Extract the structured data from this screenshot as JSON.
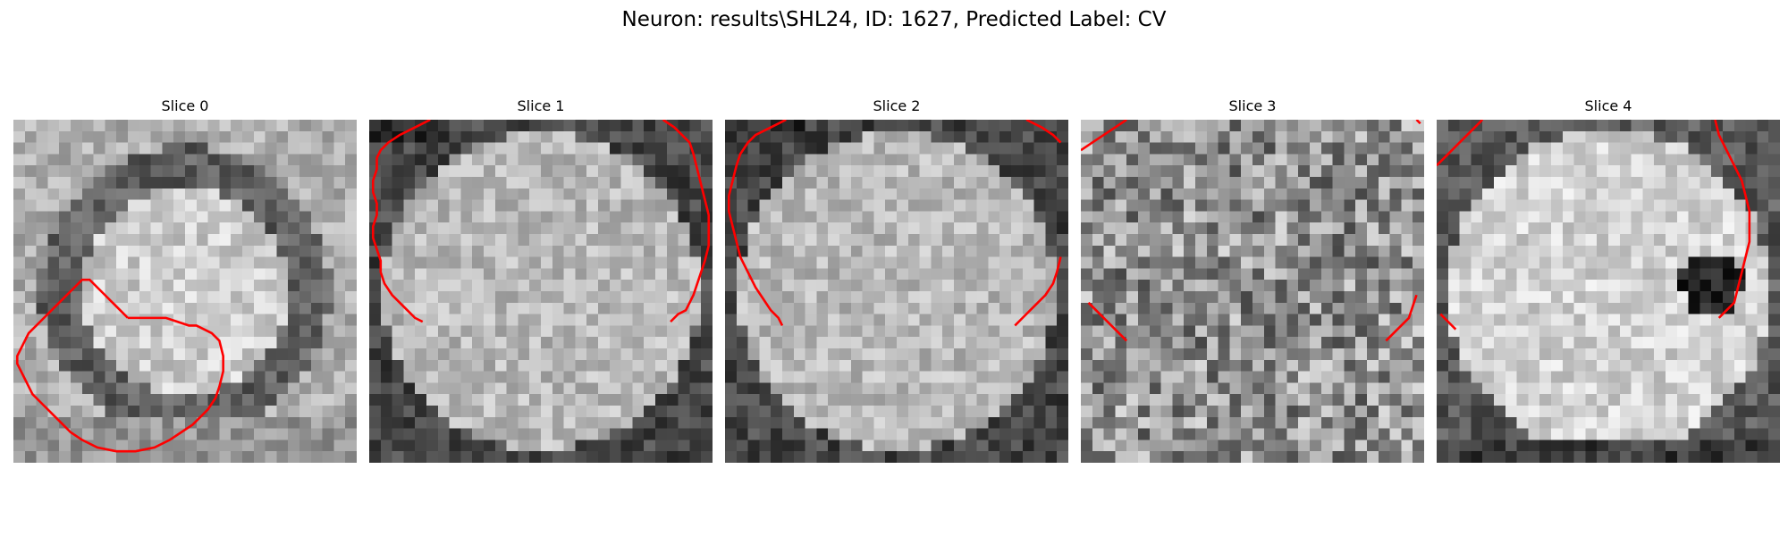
{
  "figure": {
    "title": "Neuron: results\\SHL24, ID: 1627, Predicted Label: CV"
  },
  "panels": [
    {
      "title": "Slice 0",
      "pattern": "ring",
      "contour_color": "#ff0000",
      "contours": [
        [
          [
            30,
            52
          ],
          [
            28,
            50
          ],
          [
            26,
            48
          ],
          [
            24,
            46
          ],
          [
            22,
            44
          ],
          [
            20,
            42
          ],
          [
            18,
            42
          ],
          [
            16,
            44
          ],
          [
            14,
            46
          ],
          [
            12,
            48
          ],
          [
            10,
            50
          ],
          [
            8,
            52
          ],
          [
            6,
            54
          ],
          [
            4,
            56
          ],
          [
            3,
            58
          ],
          [
            2,
            60
          ],
          [
            1,
            62
          ],
          [
            1,
            64
          ],
          [
            2,
            66
          ],
          [
            3,
            68
          ],
          [
            4,
            70
          ],
          [
            5,
            72
          ],
          [
            7,
            74
          ],
          [
            9,
            76
          ],
          [
            11,
            78
          ],
          [
            13,
            80
          ],
          [
            15,
            82
          ],
          [
            18,
            84
          ],
          [
            22,
            86
          ],
          [
            27,
            87
          ],
          [
            32,
            87
          ],
          [
            37,
            86
          ],
          [
            41,
            84
          ],
          [
            44,
            82
          ],
          [
            47,
            80
          ],
          [
            49,
            78
          ],
          [
            51,
            76
          ],
          [
            53,
            73
          ],
          [
            54,
            70
          ],
          [
            55,
            66
          ],
          [
            55,
            62
          ],
          [
            54,
            58
          ],
          [
            52,
            56
          ],
          [
            50,
            55
          ],
          [
            48,
            54
          ],
          [
            46,
            54
          ],
          [
            43,
            53
          ],
          [
            40,
            52
          ],
          [
            36,
            52
          ],
          [
            30,
            52
          ]
        ]
      ]
    },
    {
      "title": "Slice 1",
      "pattern": "disk",
      "contour_color": "#ff0000",
      "contours": [
        [
          [
            16,
            0
          ],
          [
            12,
            2
          ],
          [
            8,
            4
          ],
          [
            5,
            6
          ],
          [
            3,
            8
          ],
          [
            2,
            10
          ],
          [
            2,
            13
          ],
          [
            1,
            16
          ],
          [
            1,
            19
          ],
          [
            2,
            22
          ],
          [
            2,
            25
          ],
          [
            1,
            28
          ],
          [
            1,
            31
          ],
          [
            2,
            34
          ],
          [
            3,
            37
          ],
          [
            3,
            40
          ],
          [
            4,
            43
          ],
          [
            6,
            46
          ],
          [
            8,
            48
          ],
          [
            10,
            50
          ],
          [
            12,
            52
          ],
          [
            14,
            53
          ]
        ],
        [
          [
            77,
            0
          ],
          [
            80,
            2
          ],
          [
            82,
            4
          ],
          [
            84,
            6
          ],
          [
            85,
            9
          ],
          [
            86,
            13
          ],
          [
            87,
            17
          ],
          [
            88,
            21
          ],
          [
            89,
            25
          ],
          [
            89,
            29
          ],
          [
            89,
            33
          ],
          [
            88,
            37
          ],
          [
            87,
            40
          ],
          [
            86,
            43
          ],
          [
            85,
            46
          ],
          [
            84,
            48
          ],
          [
            83,
            50
          ],
          [
            81,
            51
          ],
          [
            79,
            53
          ]
        ]
      ]
    },
    {
      "title": "Slice 2",
      "pattern": "disk",
      "contour_color": "#ff0000",
      "contours": [
        [
          [
            16,
            0
          ],
          [
            12,
            2
          ],
          [
            8,
            4
          ],
          [
            6,
            6
          ],
          [
            4,
            9
          ],
          [
            3,
            12
          ],
          [
            2,
            16
          ],
          [
            1,
            20
          ],
          [
            1,
            24
          ],
          [
            2,
            28
          ],
          [
            3,
            32
          ],
          [
            4,
            36
          ],
          [
            6,
            40
          ],
          [
            8,
            44
          ],
          [
            10,
            47
          ],
          [
            12,
            50
          ],
          [
            14,
            52
          ],
          [
            15,
            54
          ]
        ],
        [
          [
            79,
            0
          ],
          [
            83,
            2
          ],
          [
            86,
            4
          ],
          [
            88,
            6
          ]
        ],
        [
          [
            88,
            36
          ],
          [
            87,
            40
          ],
          [
            86,
            43
          ],
          [
            84,
            46
          ],
          [
            82,
            48
          ],
          [
            80,
            50
          ],
          [
            78,
            52
          ],
          [
            76,
            54
          ]
        ]
      ]
    },
    {
      "title": "Slice 3",
      "pattern": "noise",
      "contour_color": "#ff0000",
      "contours": [
        [
          [
            0,
            8
          ],
          [
            3,
            6
          ],
          [
            6,
            4
          ],
          [
            9,
            2
          ],
          [
            12,
            0
          ]
        ],
        [
          [
            2,
            48
          ],
          [
            4,
            50
          ],
          [
            6,
            52
          ],
          [
            8,
            54
          ],
          [
            10,
            56
          ],
          [
            12,
            58
          ]
        ],
        [
          [
            88,
            0
          ],
          [
            89,
            1
          ]
        ],
        [
          [
            88,
            46
          ],
          [
            87,
            49
          ],
          [
            86,
            52
          ],
          [
            84,
            54
          ],
          [
            82,
            56
          ],
          [
            80,
            58
          ]
        ]
      ]
    },
    {
      "title": "Slice 4",
      "pattern": "blob",
      "contour_color": "#ff0000",
      "contours": [
        [
          [
            0,
            12
          ],
          [
            3,
            9
          ],
          [
            6,
            6
          ],
          [
            9,
            3
          ],
          [
            12,
            0
          ]
        ],
        [
          [
            73,
            0
          ],
          [
            74,
            4
          ],
          [
            76,
            8
          ],
          [
            78,
            12
          ],
          [
            80,
            16
          ],
          [
            81,
            20
          ],
          [
            82,
            24
          ],
          [
            82,
            28
          ],
          [
            82,
            32
          ],
          [
            81,
            36
          ],
          [
            80,
            40
          ],
          [
            79,
            44
          ],
          [
            78,
            48
          ],
          [
            76,
            50
          ],
          [
            74,
            52
          ]
        ],
        [
          [
            1,
            51
          ],
          [
            3,
            53
          ],
          [
            5,
            55
          ]
        ]
      ]
    }
  ]
}
